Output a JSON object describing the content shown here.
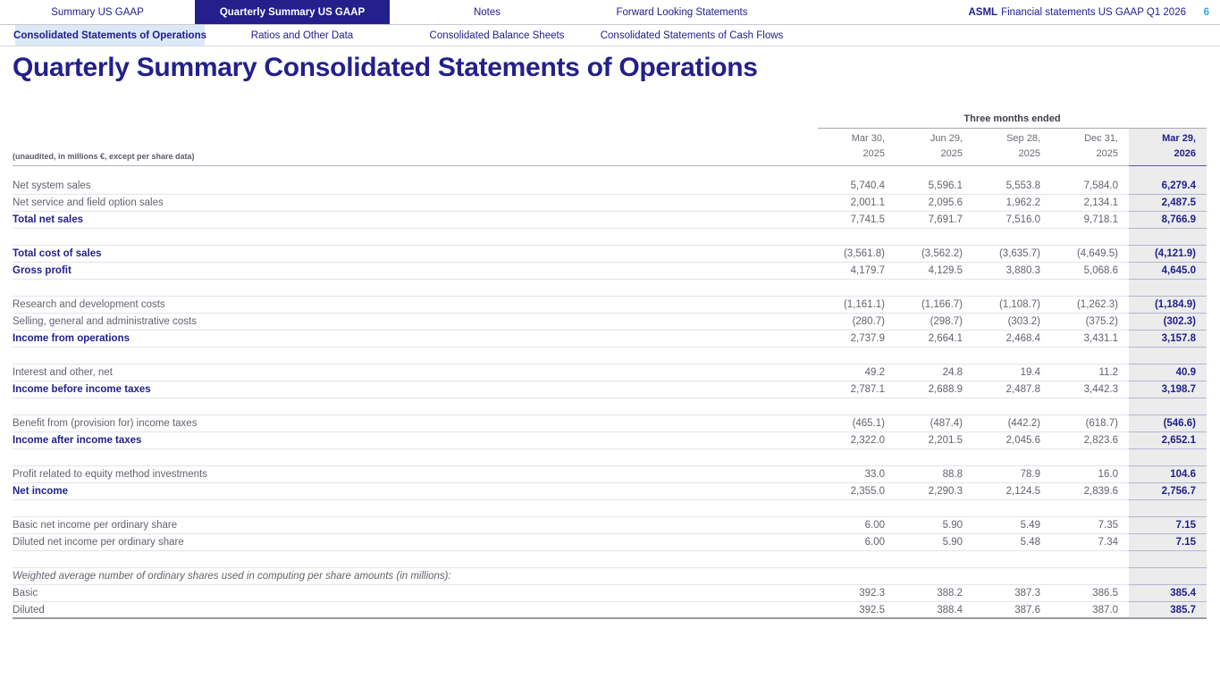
{
  "nav": {
    "tabs": [
      {
        "label": "Summary US GAAP",
        "active": false
      },
      {
        "label": "Quarterly Summary US GAAP",
        "active": true
      },
      {
        "label": "Notes",
        "active": false
      },
      {
        "label": "Forward Looking Statements",
        "active": false
      }
    ],
    "doc_brand": "ASML",
    "doc_title": "Financial statements US GAAP Q1 2026",
    "page_number": "6"
  },
  "subnav": {
    "tabs": [
      {
        "label": "Consolidated Statements of Operations",
        "active": true
      },
      {
        "label": "Ratios and Other Data",
        "active": false
      },
      {
        "label": "Consolidated Balance Sheets",
        "active": false
      },
      {
        "label": "Consolidated Statements of Cash Flows",
        "active": false
      }
    ]
  },
  "page_title": "Quarterly Summary Consolidated Statements of Operations",
  "table": {
    "note": "(unaudited, in millions €, except per share data)",
    "period_header": "Three months ended",
    "columns": [
      {
        "line1": "Mar 30,",
        "line2": "2025",
        "highlight": false
      },
      {
        "line1": "Jun 29,",
        "line2": "2025",
        "highlight": false
      },
      {
        "line1": "Sep 28,",
        "line2": "2025",
        "highlight": false
      },
      {
        "line1": "Dec 31,",
        "line2": "2025",
        "highlight": false
      },
      {
        "line1": "Mar 29,",
        "line2": "2026",
        "highlight": true
      }
    ],
    "rows": [
      {
        "type": "topspacer",
        "label": "",
        "values": []
      },
      {
        "type": "item",
        "label": "Net system sales",
        "values": [
          "5,740.4",
          "5,596.1",
          "5,553.8",
          "7,584.0",
          "6,279.4"
        ]
      },
      {
        "type": "item",
        "label": "Net service and field option sales",
        "values": [
          "2,001.1",
          "2,095.6",
          "1,962.2",
          "2,134.1",
          "2,487.5"
        ]
      },
      {
        "type": "subtotal",
        "label": "Total net sales",
        "values": [
          "7,741.5",
          "7,691.7",
          "7,516.0",
          "9,718.1",
          "8,766.9"
        ]
      },
      {
        "type": "spacer",
        "label": "",
        "values": []
      },
      {
        "type": "subtotal",
        "label": "Total cost of sales",
        "values": [
          "(3,561.8)",
          "(3,562.2)",
          "(3,635.7)",
          "(4,649.5)",
          "(4,121.9)"
        ]
      },
      {
        "type": "subtotal",
        "label": "Gross profit",
        "values": [
          "4,179.7",
          "4,129.5",
          "3,880.3",
          "5,068.6",
          "4,645.0"
        ]
      },
      {
        "type": "spacer",
        "label": "",
        "values": []
      },
      {
        "type": "item",
        "label": "Research and development costs",
        "values": [
          "(1,161.1)",
          "(1,166.7)",
          "(1,108.7)",
          "(1,262.3)",
          "(1,184.9)"
        ]
      },
      {
        "type": "item",
        "label": "Selling, general and administrative costs",
        "values": [
          "(280.7)",
          "(298.7)",
          "(303.2)",
          "(375.2)",
          "(302.3)"
        ]
      },
      {
        "type": "subtotal",
        "label": "Income from operations",
        "values": [
          "2,737.9",
          "2,664.1",
          "2,468.4",
          "3,431.1",
          "3,157.8"
        ]
      },
      {
        "type": "spacer",
        "label": "",
        "values": []
      },
      {
        "type": "item",
        "label": "Interest and other, net",
        "values": [
          "49.2",
          "24.8",
          "19.4",
          "11.2",
          "40.9"
        ]
      },
      {
        "type": "subtotal",
        "label": "Income before income taxes",
        "values": [
          "2,787.1",
          "2,688.9",
          "2,487.8",
          "3,442.3",
          "3,198.7"
        ]
      },
      {
        "type": "spacer",
        "label": "",
        "values": []
      },
      {
        "type": "item",
        "label": "Benefit from (provision for) income taxes",
        "values": [
          "(465.1)",
          "(487.4)",
          "(442.2)",
          "(618.7)",
          "(546.6)"
        ]
      },
      {
        "type": "subtotal",
        "label": "Income after income taxes",
        "values": [
          "2,322.0",
          "2,201.5",
          "2,045.6",
          "2,823.6",
          "2,652.1"
        ]
      },
      {
        "type": "spacer",
        "label": "",
        "values": []
      },
      {
        "type": "item",
        "label": "Profit related to equity method investments",
        "values": [
          "33.0",
          "88.8",
          "78.9",
          "16.0",
          "104.6"
        ]
      },
      {
        "type": "subtotal",
        "label": "Net income",
        "values": [
          "2,355.0",
          "2,290.3",
          "2,124.5",
          "2,839.6",
          "2,756.7"
        ]
      },
      {
        "type": "spacer",
        "label": "",
        "values": []
      },
      {
        "type": "item",
        "label": "Basic net income per ordinary share",
        "values": [
          "6.00",
          "5.90",
          "5.49",
          "7.35",
          "7.15"
        ]
      },
      {
        "type": "item",
        "label": "Diluted net income per ordinary share",
        "values": [
          "6.00",
          "5.90",
          "5.48",
          "7.34",
          "7.15"
        ]
      },
      {
        "type": "spacer",
        "label": "",
        "values": []
      },
      {
        "type": "note",
        "label": "Weighted average number of ordinary shares used in computing per share amounts (in millions):",
        "values": []
      },
      {
        "type": "item",
        "label": "Basic",
        "values": [
          "392.3",
          "388.2",
          "387.3",
          "386.5",
          "385.4"
        ]
      },
      {
        "type": "item",
        "label": "Diluted",
        "values": [
          "392.5",
          "388.4",
          "387.6",
          "387.0",
          "385.7"
        ],
        "last": true
      }
    ]
  },
  "colors": {
    "accent_navy": "#23208C",
    "highlight_bg": "#ECECEC",
    "subtab_bg": "#DBE9F7",
    "page_num": "#2BA9E0"
  }
}
